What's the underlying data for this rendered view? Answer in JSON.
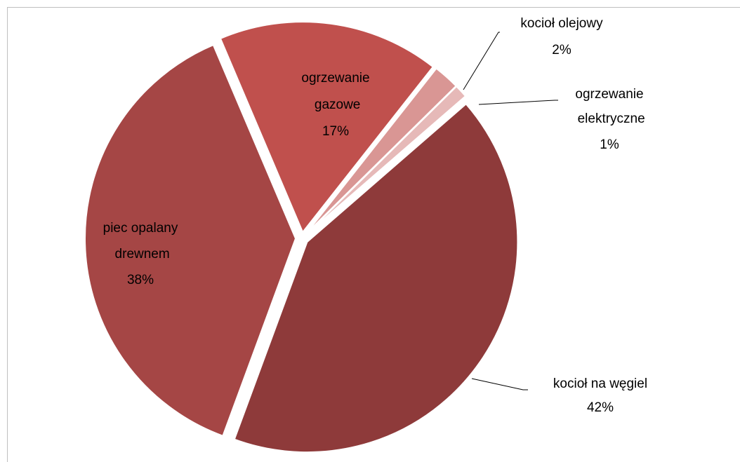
{
  "chart_data": {
    "type": "pie",
    "categories": [
      "kocioł na węgiel",
      "piec opalany drewnem",
      "ogrzewanie gazowe",
      "kocioł olejowy",
      "ogrzewanie elektryczne"
    ],
    "values": [
      42,
      38,
      17,
      2,
      1
    ],
    "value_labels": [
      "42%",
      "38%",
      "17%",
      "2%",
      "1%"
    ],
    "colors": [
      "#8e3a3a",
      "#a54645",
      "#c0504d",
      "#d99694",
      "#e6b9b8"
    ]
  }
}
